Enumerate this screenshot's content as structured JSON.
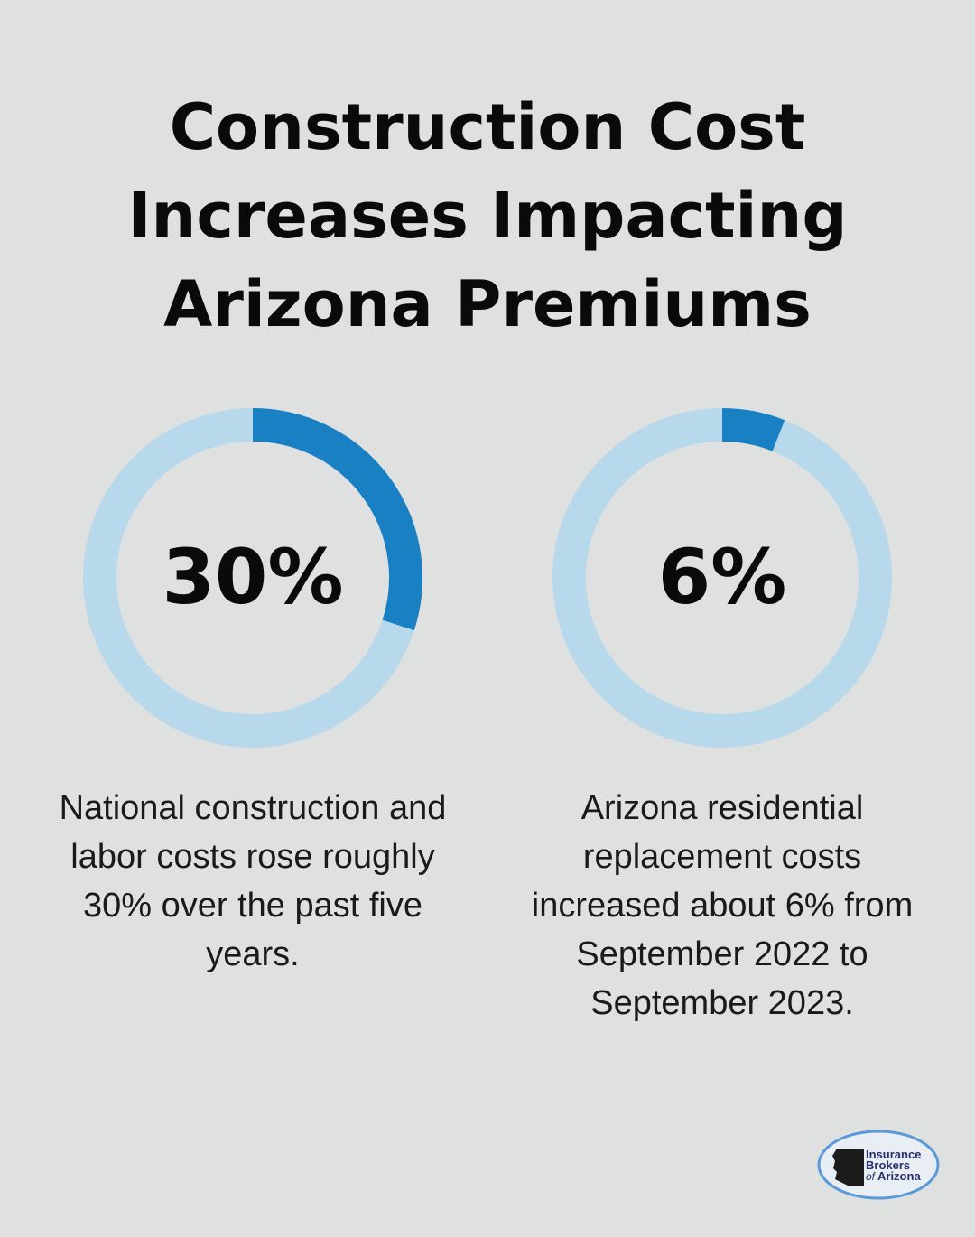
{
  "title": "Construction Cost Increases Impacting Arizona Premiums",
  "chart_data": [
    {
      "type": "pie",
      "subtype": "donut",
      "value": 30,
      "max": 100,
      "label": "30%",
      "description": "National construction and labor costs rose roughly 30% over the past five years.",
      "colors": {
        "filled": "#1a80c4",
        "remaining": "#b8d8ec"
      }
    },
    {
      "type": "pie",
      "subtype": "donut",
      "value": 6,
      "max": 100,
      "label": "6%",
      "description": "Arizona residential replacement costs increased about 6% from September 2022 to September 2023.",
      "colors": {
        "filled": "#1a80c4",
        "remaining": "#b8d8ec"
      }
    }
  ],
  "logo": {
    "text": "Insurance Brokers of Arizona",
    "lines": [
      "Insurance",
      "Brokers",
      "of",
      "Arizona"
    ]
  }
}
